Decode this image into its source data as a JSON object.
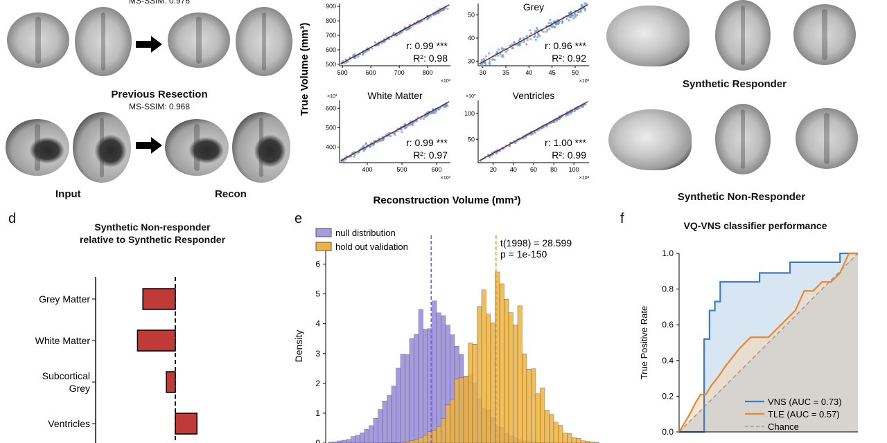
{
  "panel_a": {
    "top_ssim": "MS-SSIM: 0.976",
    "section_title": "Previous Resection",
    "section_ssim": "MS-SSIM: 0.968",
    "input_label": "Input",
    "recon_label": "Recon",
    "input_color": "#5aa04a",
    "recon_color": "#8b6fd1"
  },
  "panel_b": {
    "ylabel": "True Volume (mm³)",
    "xlabel": "Reconstruction Volume (mm³)",
    "subplots": [
      {
        "title": "",
        "r": "r: 0.99 ***",
        "r2": "R²: 0.98",
        "xticks": [
          "500",
          "600",
          "700",
          "800"
        ],
        "yticks": [
          "500",
          "600",
          "700",
          "800",
          "900"
        ],
        "xrange": [
          490,
          880
        ],
        "yrange": [
          490,
          920
        ],
        "exp_x": "×10³",
        "exp_y": ""
      },
      {
        "title": "Grey",
        "r": "r: 0.96 ***",
        "r2": "R²: 0.92",
        "xticks": [
          "30",
          "35",
          "40",
          "45",
          "50"
        ],
        "yticks": [
          "30",
          "40",
          "50"
        ],
        "xrange": [
          29,
          53
        ],
        "yrange": [
          28,
          55
        ],
        "exp_x": "×10³",
        "exp_y": ""
      },
      {
        "title": "White Matter",
        "r": "r: 0.99 ***",
        "r2": "R²: 0.97",
        "xticks": [
          "400",
          "500",
          "600"
        ],
        "yticks": [
          "400",
          "500",
          "600"
        ],
        "xrange": [
          320,
          640
        ],
        "yrange": [
          320,
          640
        ],
        "exp_x": "×10³",
        "exp_y": "×10³"
      },
      {
        "title": "Ventricles",
        "r": "r: 1.00 ***",
        "r2": "R²: 0.99",
        "xticks": [
          "20",
          "40",
          "60",
          "80",
          "100"
        ],
        "yticks": [
          "50",
          "100"
        ],
        "xrange": [
          5,
          115
        ],
        "yrange": [
          5,
          125
        ],
        "exp_x": "×10³",
        "exp_y": "×10³"
      }
    ]
  },
  "panel_c": {
    "responder_label": "Synthetic Responder",
    "non_responder_label": "Synthetic Non-Responder"
  },
  "panel_d": {
    "letter": "d",
    "title_line1": "Synthetic Non-responder",
    "title_line2": "relative to Synthetic Responder",
    "bar_color": "#c03a38",
    "categories": [
      "Grey Matter",
      "White Matter",
      "Subcortical\nGrey",
      "Ventricles"
    ],
    "category_lines": [
      [
        "Grey Matter"
      ],
      [
        "White Matter"
      ],
      [
        "Subcortical",
        "Grey"
      ],
      [
        "Ventricles"
      ]
    ],
    "values": [
      -0.9,
      -1.05,
      -0.25,
      0.6
    ]
  },
  "panel_e": {
    "letter": "e",
    "legend_null": "null distribution",
    "legend_holdout": "hold out validation",
    "stat_line1": "t(1998) = 28.599",
    "stat_line2": "p = 1e-150",
    "ylabel": "Density",
    "yticks": [
      "0",
      "1",
      "2",
      "3",
      "4",
      "5",
      "6"
    ],
    "null_color": "#a79be0",
    "holdout_color": "#f0b33c",
    "null_mean": 0.38,
    "holdout_mean": 0.62
  },
  "panel_f": {
    "letter": "f",
    "title": "VQ-VNS classifier performance",
    "ylabel": "True Positive Rate",
    "yticks": [
      "0.0",
      "0.2",
      "0.4",
      "0.6",
      "0.8",
      "1.0"
    ],
    "legend": [
      "VNS (AUC = 0.73)",
      "TLE (AUC = 0.57)",
      "Chance"
    ],
    "vns_color": "#3d7cc0",
    "tle_color": "#e8872f",
    "chance_color": "#9a9a9a"
  },
  "chart_data": [
    {
      "type": "bar",
      "title": "Synthetic Non-responder relative to Synthetic Responder",
      "categories": [
        "Grey Matter",
        "White Matter",
        "Subcortical Grey",
        "Ventricles"
      ],
      "values": [
        -0.9,
        -1.05,
        -0.25,
        0.6
      ]
    },
    {
      "type": "bar",
      "ylabel": "Density",
      "series": [
        {
          "name": "null distribution"
        },
        {
          "name": "hold out validation"
        }
      ],
      "ylim": [
        0,
        6.5
      ]
    },
    {
      "type": "line",
      "title": "VQ-VNS classifier performance",
      "ylabel": "True Positive Rate",
      "ylim": [
        0,
        1
      ],
      "series": [
        {
          "name": "VNS (AUC = 0.73)",
          "x": [
            0,
            0.14,
            0.14,
            0.17,
            0.17,
            0.2,
            0.2,
            0.23,
            0.23,
            0.45,
            0.45,
            0.62,
            0.62,
            0.9,
            0.9,
            1.0
          ],
          "y": [
            0,
            0,
            0.52,
            0.52,
            0.68,
            0.68,
            0.73,
            0.73,
            0.84,
            0.84,
            0.89,
            0.89,
            0.95,
            0.95,
            1.0,
            1.0
          ]
        },
        {
          "name": "TLE (AUC = 0.57)",
          "x": [
            0,
            0.03,
            0.06,
            0.09,
            0.12,
            0.15,
            0.18,
            0.22,
            0.26,
            0.3,
            0.34,
            0.4,
            0.45,
            0.5,
            0.55,
            0.6,
            0.65,
            0.7,
            0.75,
            0.8,
            0.85,
            0.9,
            0.95,
            1.0
          ],
          "y": [
            0,
            0.05,
            0.1,
            0.16,
            0.21,
            0.21,
            0.26,
            0.31,
            0.37,
            0.42,
            0.47,
            0.53,
            0.53,
            0.53,
            0.58,
            0.63,
            0.68,
            0.79,
            0.79,
            0.84,
            0.84,
            0.89,
            1.0,
            1.0
          ]
        },
        {
          "name": "Chance",
          "x": [
            0,
            1
          ],
          "y": [
            0,
            1
          ]
        }
      ]
    }
  ]
}
